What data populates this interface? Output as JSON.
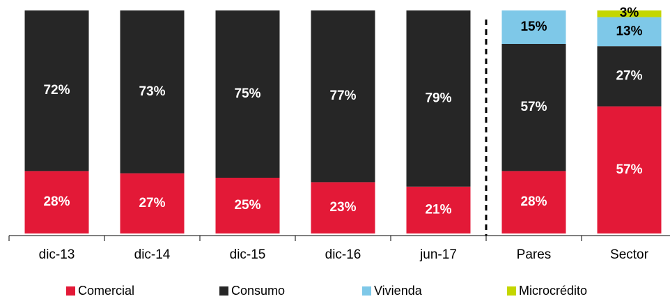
{
  "chart_data": {
    "type": "stacked_bar",
    "categories": [
      "dic-13",
      "dic-14",
      "dic-15",
      "dic-16",
      "jun-17",
      "Pares",
      "Sector"
    ],
    "ylim": [
      0,
      100
    ],
    "series": [
      {
        "name": "Comercial",
        "color": "#e31937",
        "values": [
          28,
          27,
          25,
          23,
          21,
          28,
          57
        ],
        "value_labels": [
          "28%",
          "27%",
          "25%",
          "23%",
          "21%",
          "28%",
          "57%"
        ]
      },
      {
        "name": "Consumo",
        "color": "#262626",
        "values": [
          72,
          73,
          75,
          77,
          79,
          57,
          27
        ],
        "value_labels": [
          "72%",
          "73%",
          "75%",
          "77%",
          "79%",
          "57%",
          "27%"
        ]
      },
      {
        "name": "Vivienda",
        "color": "#7ec8e8",
        "values": [
          null,
          null,
          null,
          null,
          null,
          15,
          13
        ],
        "value_labels": [
          null,
          null,
          null,
          null,
          null,
          "15%",
          "13%"
        ]
      },
      {
        "name": "Microcrédito",
        "color": "#c4d600",
        "values": [
          null,
          null,
          null,
          null,
          null,
          null,
          3
        ],
        "value_labels": [
          null,
          null,
          null,
          null,
          null,
          null,
          "3%"
        ]
      }
    ]
  }
}
